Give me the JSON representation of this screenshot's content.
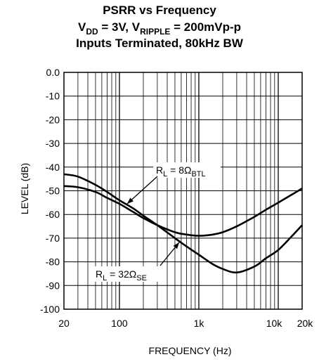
{
  "title": {
    "line1": "PSRR vs Frequency",
    "line2_a": "V",
    "line2_a_sub": "DD",
    "line2_b": " = 3V, V",
    "line2_b_sub": "RIPPLE",
    "line2_c": " = 200mVp-p",
    "line3": "Inputs Terminated, 80kHz BW"
  },
  "chart_data": {
    "type": "line",
    "xlabel": "FREQUENCY (Hz)",
    "ylabel": "LEVEL (dB)",
    "xscale": "log",
    "xlim": [
      20,
      20000
    ],
    "ylim": [
      -100,
      0
    ],
    "grid": true,
    "x_tick_labels": [
      "20",
      "100",
      "1k",
      "10k",
      "20k"
    ],
    "x_tick_values": [
      20,
      100,
      1000,
      10000,
      20000
    ],
    "y_tick_labels": [
      "0.0",
      "-10",
      "-20",
      "-30",
      "-40",
      "-50",
      "-60",
      "-70",
      "-80",
      "-90",
      "-100"
    ],
    "y_tick_values": [
      0,
      -10,
      -20,
      -30,
      -40,
      -50,
      -60,
      -70,
      -80,
      -90,
      -100
    ],
    "series": [
      {
        "name_main": "R",
        "name_sub_a": "L",
        "name_rest": " = 8Ω",
        "name_sub_b": "BTL",
        "x": [
          20,
          30,
          50,
          70,
          100,
          150,
          200,
          300,
          500,
          700,
          1000,
          1500,
          2000,
          3000,
          5000,
          7000,
          10000,
          15000,
          20000
        ],
        "y": [
          -48,
          -48.5,
          -50.5,
          -53,
          -55.5,
          -59,
          -61.5,
          -64.5,
          -67.5,
          -68.5,
          -69,
          -68.5,
          -67.5,
          -65,
          -61,
          -58,
          -55,
          -51.5,
          -49
        ]
      },
      {
        "name_main": "R",
        "name_sub_a": "L",
        "name_rest": " = 32Ω",
        "name_sub_b": "SE",
        "x": [
          20,
          30,
          50,
          70,
          100,
          150,
          200,
          300,
          500,
          700,
          1000,
          1500,
          2000,
          3000,
          5000,
          7000,
          10000,
          15000,
          20000
        ],
        "y": [
          -43,
          -44,
          -47.5,
          -50.5,
          -54,
          -57.5,
          -60.5,
          -64.5,
          -70,
          -73.5,
          -77,
          -81,
          -83,
          -84.5,
          -82,
          -78.5,
          -75,
          -69,
          -64.5
        ]
      }
    ]
  }
}
